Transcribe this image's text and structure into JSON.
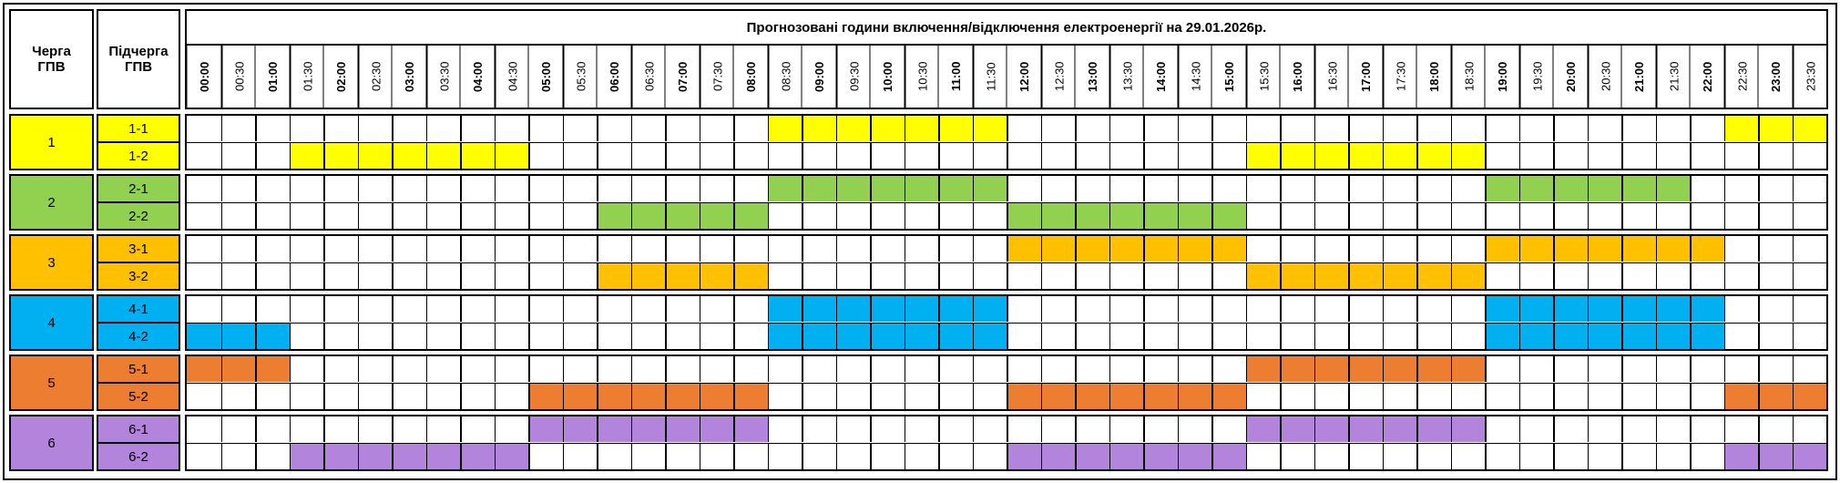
{
  "header": {
    "title": "Прогнозовані години включення/відключення електроенергії на 29.01.2026р.",
    "group_col": "Черга ГПВ",
    "subgroup_col": "Підчерга ГПВ",
    "times": [
      "00:00",
      "00:30",
      "01:00",
      "01:30",
      "02:00",
      "02:30",
      "03:00",
      "03:30",
      "04:00",
      "04:30",
      "05:00",
      "05:30",
      "06:00",
      "06:30",
      "07:00",
      "07:30",
      "08:00",
      "08:30",
      "09:00",
      "09:30",
      "10:00",
      "10:30",
      "11:00",
      "11:30",
      "12:00",
      "12:30",
      "13:00",
      "13:30",
      "14:00",
      "14:30",
      "15:00",
      "15:30",
      "16:00",
      "16:30",
      "17:00",
      "17:30",
      "18:00",
      "18:30",
      "19:00",
      "19:30",
      "20:00",
      "20:30",
      "21:00",
      "21:30",
      "22:00",
      "22:30",
      "23:00",
      "23:30"
    ]
  },
  "groups": [
    {
      "label": "1",
      "color": "#ffff00",
      "subgroups": [
        {
          "label": "1-1",
          "cells": [
            0,
            0,
            0,
            0,
            0,
            0,
            0,
            0,
            0,
            0,
            0,
            0,
            0,
            0,
            0,
            0,
            0,
            1,
            1,
            1,
            1,
            1,
            1,
            1,
            0,
            0,
            0,
            0,
            0,
            0,
            0,
            0,
            0,
            0,
            0,
            0,
            0,
            0,
            0,
            0,
            0,
            0,
            0,
            0,
            0,
            1,
            1,
            1
          ]
        },
        {
          "label": "1-2",
          "cells": [
            0,
            0,
            0,
            1,
            1,
            1,
            1,
            1,
            1,
            1,
            0,
            0,
            0,
            0,
            0,
            0,
            0,
            0,
            0,
            0,
            0,
            0,
            0,
            0,
            0,
            0,
            0,
            0,
            0,
            0,
            0,
            1,
            1,
            1,
            1,
            1,
            1,
            1,
            0,
            0,
            0,
            0,
            0,
            0,
            0,
            0,
            0,
            0
          ]
        }
      ]
    },
    {
      "label": "2",
      "color": "#92d050",
      "subgroups": [
        {
          "label": "2-1",
          "cells": [
            0,
            0,
            0,
            0,
            0,
            0,
            0,
            0,
            0,
            0,
            0,
            0,
            0,
            0,
            0,
            0,
            0,
            1,
            1,
            1,
            1,
            1,
            1,
            1,
            0,
            0,
            0,
            0,
            0,
            0,
            0,
            0,
            0,
            0,
            0,
            0,
            0,
            0,
            1,
            1,
            1,
            1,
            1,
            1,
            0,
            0,
            0,
            0
          ]
        },
        {
          "label": "2-2",
          "cells": [
            0,
            0,
            0,
            0,
            0,
            0,
            0,
            0,
            0,
            0,
            0,
            0,
            1,
            1,
            1,
            1,
            1,
            0,
            0,
            0,
            0,
            0,
            0,
            0,
            1,
            1,
            1,
            1,
            1,
            1,
            1,
            0,
            0,
            0,
            0,
            0,
            0,
            0,
            0,
            0,
            0,
            0,
            0,
            0,
            0,
            0,
            0,
            0
          ]
        }
      ]
    },
    {
      "label": "3",
      "color": "#ffc000",
      "subgroups": [
        {
          "label": "3-1",
          "cells": [
            0,
            0,
            0,
            0,
            0,
            0,
            0,
            0,
            0,
            0,
            0,
            0,
            0,
            0,
            0,
            0,
            0,
            0,
            0,
            0,
            0,
            0,
            0,
            0,
            1,
            1,
            1,
            1,
            1,
            1,
            1,
            0,
            0,
            0,
            0,
            0,
            0,
            0,
            1,
            1,
            1,
            1,
            1,
            1,
            1,
            0,
            0,
            0
          ]
        },
        {
          "label": "3-2",
          "cells": [
            0,
            0,
            0,
            0,
            0,
            0,
            0,
            0,
            0,
            0,
            0,
            0,
            1,
            1,
            1,
            1,
            1,
            0,
            0,
            0,
            0,
            0,
            0,
            0,
            0,
            0,
            0,
            0,
            0,
            0,
            0,
            1,
            1,
            1,
            1,
            1,
            1,
            1,
            0,
            0,
            0,
            0,
            0,
            0,
            0,
            0,
            0,
            0
          ]
        }
      ]
    },
    {
      "label": "4",
      "color": "#00b0f0",
      "subgroups": [
        {
          "label": "4-1",
          "cells": [
            0,
            0,
            0,
            0,
            0,
            0,
            0,
            0,
            0,
            0,
            0,
            0,
            0,
            0,
            0,
            0,
            0,
            1,
            1,
            1,
            1,
            1,
            1,
            1,
            0,
            0,
            0,
            0,
            0,
            0,
            0,
            0,
            0,
            0,
            0,
            0,
            0,
            0,
            1,
            1,
            1,
            1,
            1,
            1,
            1,
            0,
            0,
            0
          ]
        },
        {
          "label": "4-2",
          "cells": [
            1,
            1,
            1,
            0,
            0,
            0,
            0,
            0,
            0,
            0,
            0,
            0,
            0,
            0,
            0,
            0,
            0,
            1,
            1,
            1,
            1,
            1,
            1,
            1,
            0,
            0,
            0,
            0,
            0,
            0,
            0,
            0,
            0,
            0,
            0,
            0,
            0,
            0,
            1,
            1,
            1,
            1,
            1,
            1,
            1,
            0,
            0,
            0
          ]
        }
      ]
    },
    {
      "label": "5",
      "color": "#ed7d31",
      "subgroups": [
        {
          "label": "5-1",
          "cells": [
            1,
            1,
            1,
            0,
            0,
            0,
            0,
            0,
            0,
            0,
            0,
            0,
            0,
            0,
            0,
            0,
            0,
            0,
            0,
            0,
            0,
            0,
            0,
            0,
            0,
            0,
            0,
            0,
            0,
            0,
            0,
            1,
            1,
            1,
            1,
            1,
            1,
            1,
            0,
            0,
            0,
            0,
            0,
            0,
            0,
            0,
            0,
            0
          ]
        },
        {
          "label": "5-2",
          "cells": [
            0,
            0,
            0,
            0,
            0,
            0,
            0,
            0,
            0,
            0,
            1,
            1,
            1,
            1,
            1,
            1,
            1,
            0,
            0,
            0,
            0,
            0,
            0,
            0,
            1,
            1,
            1,
            1,
            1,
            1,
            1,
            0,
            0,
            0,
            0,
            0,
            0,
            0,
            0,
            0,
            0,
            0,
            0,
            0,
            0,
            1,
            1,
            1
          ]
        }
      ]
    },
    {
      "label": "6",
      "color": "#b384dc",
      "subgroups": [
        {
          "label": "6-1",
          "cells": [
            0,
            0,
            0,
            0,
            0,
            0,
            0,
            0,
            0,
            0,
            1,
            1,
            1,
            1,
            1,
            1,
            1,
            0,
            0,
            0,
            0,
            0,
            0,
            0,
            0,
            0,
            0,
            0,
            0,
            0,
            0,
            1,
            1,
            1,
            1,
            1,
            1,
            1,
            0,
            0,
            0,
            0,
            0,
            0,
            0,
            0,
            0,
            0
          ]
        },
        {
          "label": "6-2",
          "cells": [
            0,
            0,
            0,
            1,
            1,
            1,
            1,
            1,
            1,
            1,
            0,
            0,
            0,
            0,
            0,
            0,
            0,
            0,
            0,
            0,
            0,
            0,
            0,
            0,
            1,
            1,
            1,
            1,
            1,
            1,
            1,
            0,
            0,
            0,
            0,
            0,
            0,
            0,
            0,
            0,
            0,
            0,
            0,
            0,
            0,
            1,
            1,
            1
          ]
        }
      ]
    }
  ]
}
